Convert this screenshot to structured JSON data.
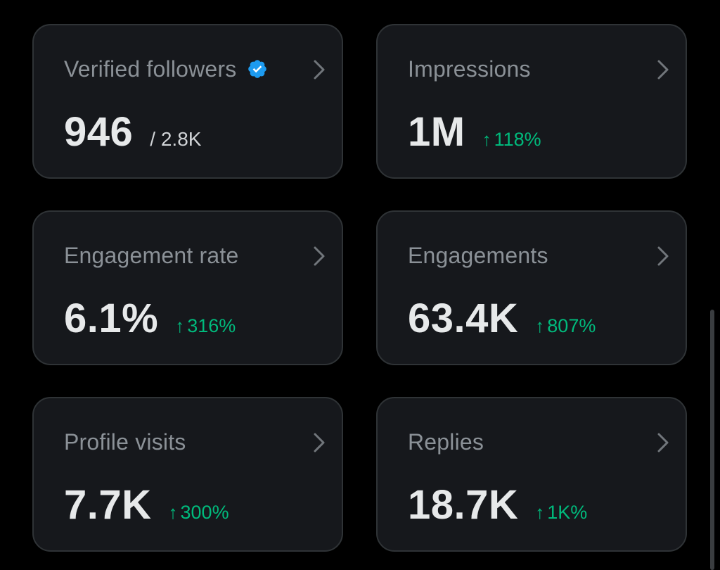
{
  "colors": {
    "background": "#000000",
    "card_background": "#16181c",
    "card_border": "#2f3336",
    "title": "#8b9197",
    "value": "#e7e9ea",
    "positive_change": "#00ba7c",
    "verified_badge": "#1d9bf0"
  },
  "cards": [
    {
      "title": "Verified followers",
      "value": "946",
      "secondary": "/ 2.8K",
      "badge_icon": "verified-badge-icon",
      "chevron_icon": "chevron-right-icon"
    },
    {
      "title": "Impressions",
      "value": "1M",
      "change_arrow": "↑",
      "change": "118%",
      "chevron_icon": "chevron-right-icon"
    },
    {
      "title": "Engagement rate",
      "value": "6.1%",
      "change_arrow": "↑",
      "change": "316%",
      "chevron_icon": "chevron-right-icon"
    },
    {
      "title": "Engagements",
      "value": "63.4K",
      "change_arrow": "↑",
      "change": "807%",
      "chevron_icon": "chevron-right-icon"
    },
    {
      "title": "Profile visits",
      "value": "7.7K",
      "change_arrow": "↑",
      "change": "300%",
      "chevron_icon": "chevron-right-icon"
    },
    {
      "title": "Replies",
      "value": "18.7K",
      "change_arrow": "↑",
      "change": "1K%",
      "chevron_icon": "chevron-right-icon"
    }
  ]
}
